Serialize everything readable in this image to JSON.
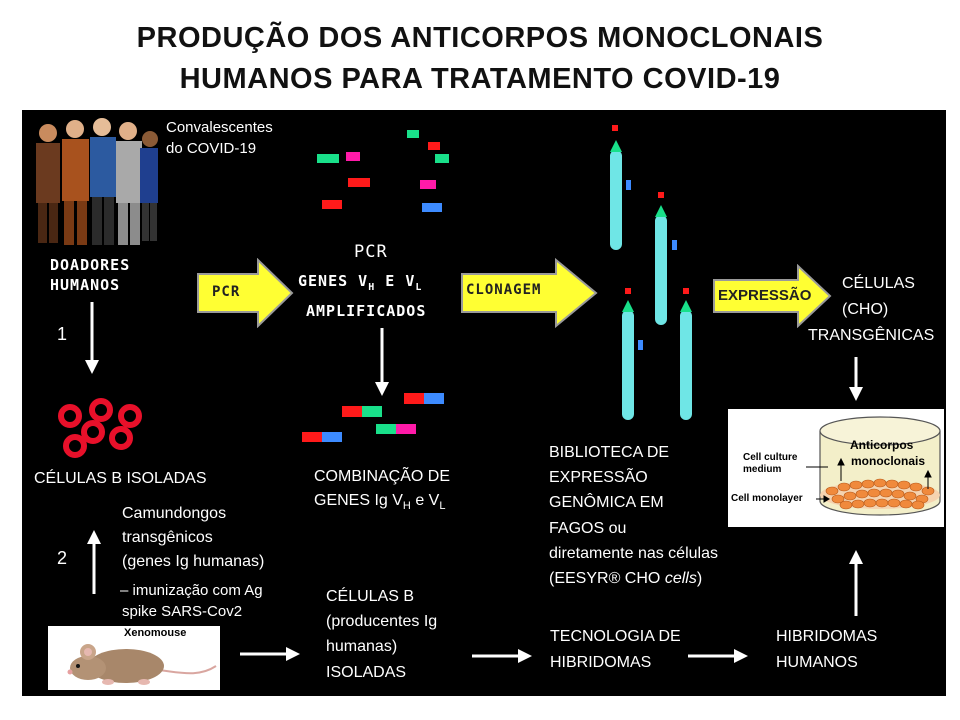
{
  "title": {
    "line1": "PRODUÇÃO DOS ANTICORPOS MONOCLONAIS",
    "line2": "HUMANOS PARA TRATAMENTO COVID-19"
  },
  "donors": {
    "caption_line1": "Convalescentes",
    "caption_line2": "do COVID-19",
    "label_line1": "DOADORES",
    "label_line2": "HUMANOS"
  },
  "steps": {
    "one": "1",
    "two": "2"
  },
  "arrows": {
    "pcr": "PCR",
    "clonagem": "CLONAGEM",
    "expressao": "EXPRESSÃO"
  },
  "pcr_text": {
    "line1": "PCR",
    "genes_prefix": "GENES V",
    "sub_h": "H",
    "and": "E  V",
    "sub_l": "L",
    "line3": "AMPLIFICADOS"
  },
  "b_cells": {
    "label": "CÉLULAS B ISOLADAS"
  },
  "combination": {
    "line1": "COMBINAÇÃO DE",
    "line2_prefix": "GENES Ig V",
    "sub_h": "H",
    "and": "e V",
    "sub_l": "L"
  },
  "library": {
    "line1": "BIBLIOTECA   DE",
    "line2": "EXPRESSÃO",
    "line3": "GENÔMICA EM",
    "line4": "FAGOS ou",
    "line5": "diretamente   nas células",
    "line6_prefix": "(EESYR® CHO ",
    "line6_italic": "cells",
    "line6_suffix": ")"
  },
  "cho": {
    "line1": "CÉLULAS",
    "line2": "(CHO)",
    "line3": "TRANSGÊNICAS"
  },
  "dish": {
    "antibodies_line1": "Anticorpos",
    "antibodies_line2": "monoclonais",
    "medium_line1": "Cell culture",
    "medium_line2": "medium",
    "monolayer": "Cell monolayer"
  },
  "mice": {
    "line1": "Camundongos",
    "line2": "transgênicos",
    "line3": "(genes Ig humanas)",
    "line4": "– imunização com  Ag",
    "line5": "spike SARS-Cov2",
    "xenomouse": "Xenomouse"
  },
  "b_producers": {
    "line1": "CÉLULAS B",
    "line2": "(producentes  Ig",
    "line3": "humanas)",
    "line4": "ISOLADAS"
  },
  "hybridoma_tech": {
    "line1": "TECNOLOGIA DE",
    "line2": "HIBRIDOMAS"
  },
  "human_hybridomas": {
    "line1": "HIBRIDOMAS",
    "line2": "HUMANOS"
  },
  "colors": {
    "panel": "#000000",
    "arrow_fill": "#ffff33",
    "arrow_edge": "#9a9a9a",
    "cell_red": "#e8102a",
    "gene_red": "#ff1a1a",
    "gene_green": "#19e08a",
    "gene_blue": "#3d8bff",
    "gene_magenta": "#ff1aa8",
    "phage": "#6fe6e6",
    "dish_cell": "#f08a3c"
  }
}
